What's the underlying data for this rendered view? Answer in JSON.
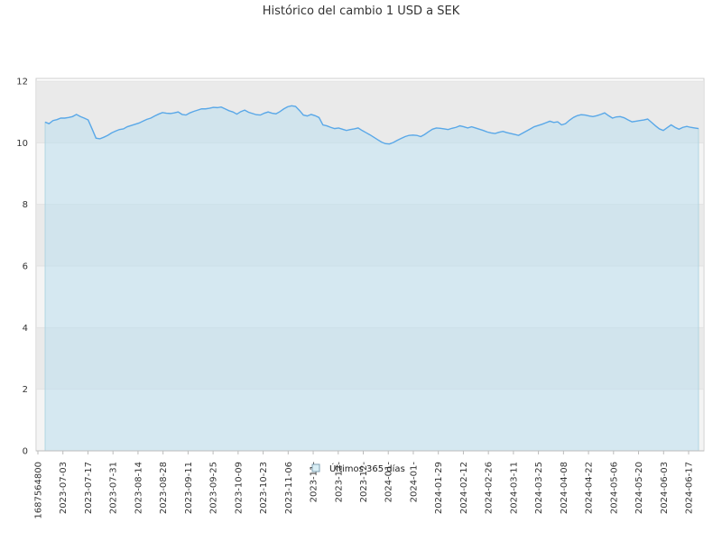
{
  "chart_data": {
    "type": "area",
    "title": "Histórico del cambio 1 USD a SEK",
    "xlabel": "",
    "ylabel": "",
    "ylim": [
      0,
      12
    ],
    "yticks": [
      0,
      2,
      4,
      6,
      8,
      10,
      12
    ],
    "grid": true,
    "legend": {
      "placement": "bottom-center",
      "label": "Últimos 365 días"
    },
    "x_tick_labels": [
      "1687564800",
      "2023-07-03",
      "2023-07-17",
      "2023-07-31",
      "2023-08-14",
      "2023-08-28",
      "2023-09-11",
      "2023-09-25",
      "2023-10-09",
      "2023-10-23",
      "2023-11-06",
      "2023-11-",
      "2023-12-",
      "2023-12-",
      "2024-01-",
      "2024-01-",
      "2024-01-29",
      "2024-02-12",
      "2024-02-26",
      "2024-03-11",
      "2024-03-25",
      "2024-04-08",
      "2024-04-22",
      "2024-05-06",
      "2024-05-20",
      "2024-06-03",
      "2024-06-17"
    ],
    "colors": {
      "line": "#5aa8e8",
      "fill": "#bfe0ee",
      "band_light": "#f4f4f4",
      "band_dark": "#d9d9d9",
      "axis": "#cccccc"
    },
    "series": [
      {
        "name": "Últimos 365 días",
        "values": [
          10.67,
          10.62,
          10.72,
          10.75,
          10.8,
          10.8,
          10.82,
          10.85,
          10.92,
          10.85,
          10.8,
          10.74,
          10.45,
          10.15,
          10.13,
          10.18,
          10.24,
          10.32,
          10.38,
          10.43,
          10.45,
          10.52,
          10.56,
          10.6,
          10.64,
          10.7,
          10.76,
          10.8,
          10.87,
          10.93,
          10.98,
          10.96,
          10.95,
          10.97,
          11.0,
          10.92,
          10.9,
          10.97,
          11.02,
          11.06,
          11.1,
          11.1,
          11.12,
          11.15,
          11.14,
          11.16,
          11.1,
          11.04,
          11.0,
          10.93,
          11.01,
          11.06,
          10.99,
          10.95,
          10.91,
          10.9,
          10.96,
          11.0,
          10.96,
          10.94,
          11.01,
          11.1,
          11.17,
          11.2,
          11.18,
          11.05,
          10.9,
          10.87,
          10.92,
          10.88,
          10.82,
          10.58,
          10.55,
          10.5,
          10.46,
          10.48,
          10.44,
          10.4,
          10.43,
          10.45,
          10.48,
          10.4,
          10.33,
          10.26,
          10.18,
          10.1,
          10.02,
          9.97,
          9.96,
          10.01,
          10.08,
          10.14,
          10.2,
          10.24,
          10.25,
          10.24,
          10.2,
          10.27,
          10.36,
          10.44,
          10.48,
          10.47,
          10.45,
          10.43,
          10.47,
          10.5,
          10.55,
          10.52,
          10.48,
          10.52,
          10.48,
          10.44,
          10.4,
          10.35,
          10.32,
          10.3,
          10.34,
          10.37,
          10.33,
          10.3,
          10.27,
          10.24,
          10.31,
          10.38,
          10.45,
          10.52,
          10.56,
          10.6,
          10.65,
          10.7,
          10.66,
          10.68,
          10.58,
          10.62,
          10.73,
          10.82,
          10.88,
          10.91,
          10.9,
          10.87,
          10.85,
          10.88,
          10.92,
          10.97,
          10.88,
          10.8,
          10.84,
          10.85,
          10.81,
          10.74,
          10.68,
          10.7,
          10.72,
          10.74,
          10.77,
          10.66,
          10.55,
          10.45,
          10.4,
          10.49,
          10.58,
          10.5,
          10.44,
          10.5,
          10.53,
          10.5,
          10.48,
          10.46
        ]
      }
    ]
  }
}
